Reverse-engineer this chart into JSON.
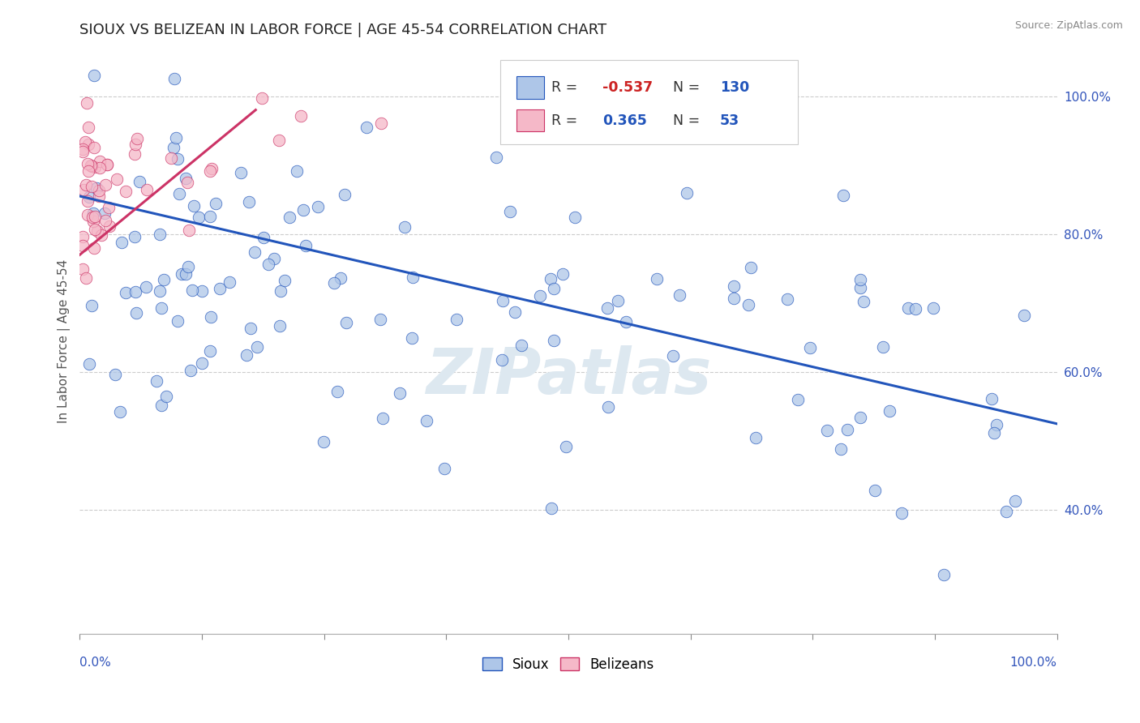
{
  "title": "SIOUX VS BELIZEAN IN LABOR FORCE | AGE 45-54 CORRELATION CHART",
  "source": "Source: ZipAtlas.com",
  "ylabel": "In Labor Force | Age 45-54",
  "y_tick_values": [
    0.4,
    0.6,
    0.8,
    1.0
  ],
  "x_range": [
    0.0,
    1.0
  ],
  "y_range": [
    0.22,
    1.07
  ],
  "legend_blue_r": "-0.537",
  "legend_blue_n": "130",
  "legend_pink_r": "0.365",
  "legend_pink_n": "53",
  "blue_color": "#aec6e8",
  "pink_color": "#f5b8c8",
  "trend_blue_color": "#2255bb",
  "trend_pink_color": "#cc3366",
  "background_color": "#ffffff",
  "watermark": "ZIPatlas",
  "blue_trend_x0": 0.0,
  "blue_trend_y0": 0.855,
  "blue_trend_x1": 1.0,
  "blue_trend_y1": 0.525,
  "pink_trend_x0": 0.0,
  "pink_trend_y0": 0.77,
  "pink_trend_x1": 0.18,
  "pink_trend_y1": 0.98
}
